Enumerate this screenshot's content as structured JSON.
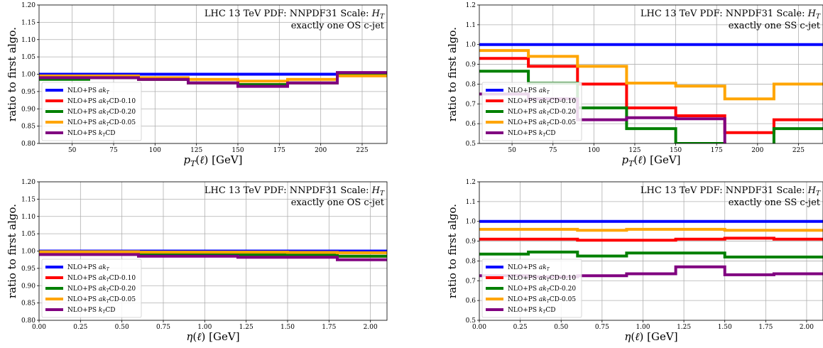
{
  "chart_data": [
    {
      "type": "line",
      "step": true,
      "annotation": [
        "LHC 13 TeV PDF: NNPDF31 Scale: H_T",
        "exactly one OS c-jet"
      ],
      "xlabel": "p_T(ℓ) [GeV]",
      "ylabel": "ratio to first algo.",
      "xlim": [
        30,
        240
      ],
      "ylim": [
        0.8,
        1.2
      ],
      "xticks": [
        50,
        75,
        100,
        125,
        150,
        175,
        200,
        225
      ],
      "yticks": [
        0.8,
        0.85,
        0.9,
        0.95,
        1.0,
        1.05,
        1.1,
        1.15,
        1.2
      ],
      "ytick_labels": [
        "0.80",
        "0.85",
        "0.90",
        "0.95",
        "1.00",
        "1.05",
        "1.10",
        "1.15",
        "1.20"
      ],
      "grid": true,
      "legend_position": "lower-left",
      "bin_edges": [
        30,
        60,
        90,
        120,
        150,
        180,
        210,
        240
      ],
      "series": [
        {
          "name": "NLO+PS ak_T",
          "color": "#0000ff",
          "values": [
            1.0,
            1.0,
            1.0,
            1.0,
            1.0,
            1.0,
            1.0
          ]
        },
        {
          "name": "NLO+PS ak_TCD-0.10",
          "color": "#ff0000",
          "values": [
            0.99,
            0.99,
            0.985,
            0.975,
            0.97,
            0.975,
            1.0
          ]
        },
        {
          "name": "NLO+PS ak_TCD-0.20",
          "color": "#008000",
          "values": [
            0.985,
            0.99,
            0.985,
            0.975,
            0.97,
            0.975,
            1.0
          ]
        },
        {
          "name": "NLO+PS ak_TCD-0.05",
          "color": "#ffa500",
          "values": [
            0.995,
            0.995,
            0.99,
            0.985,
            0.98,
            0.985,
            0.995
          ]
        },
        {
          "name": "NLO+PS k_TCD",
          "color": "#800080",
          "values": [
            0.99,
            0.99,
            0.985,
            0.975,
            0.965,
            0.975,
            1.005
          ]
        }
      ]
    },
    {
      "type": "line",
      "step": true,
      "annotation": [
        "LHC 13 TeV PDF: NNPDF31 Scale: H_T",
        "exactly one SS c-jet"
      ],
      "xlabel": "p_T(ℓ) [GeV]",
      "ylabel": "ratio to first algo.",
      "xlim": [
        30,
        240
      ],
      "ylim": [
        0.5,
        1.2
      ],
      "xticks": [
        50,
        75,
        100,
        125,
        150,
        175,
        200,
        225
      ],
      "yticks": [
        0.5,
        0.6,
        0.7,
        0.8,
        0.9,
        1.0,
        1.1,
        1.2
      ],
      "ytick_labels": [
        "0.5",
        "0.6",
        "0.7",
        "0.8",
        "0.9",
        "1.0",
        "1.1",
        "1.2"
      ],
      "grid": true,
      "legend_position": "lower-left",
      "bin_edges": [
        30,
        60,
        90,
        120,
        150,
        180,
        210,
        240
      ],
      "series": [
        {
          "name": "NLO+PS ak_T",
          "color": "#0000ff",
          "values": [
            1.0,
            1.0,
            1.0,
            1.0,
            1.0,
            1.0,
            1.0
          ]
        },
        {
          "name": "NLO+PS ak_TCD-0.10",
          "color": "#ff0000",
          "values": [
            0.93,
            0.89,
            0.8,
            0.68,
            0.64,
            0.555,
            0.62
          ]
        },
        {
          "name": "NLO+PS ak_TCD-0.20",
          "color": "#008000",
          "values": [
            0.865,
            0.805,
            0.68,
            0.575,
            0.5,
            0.45,
            0.575
          ]
        },
        {
          "name": "NLO+PS ak_TCD-0.05",
          "color": "#ffa500",
          "values": [
            0.97,
            0.94,
            0.89,
            0.805,
            0.79,
            0.725,
            0.8
          ]
        },
        {
          "name": "NLO+PS k_TCD",
          "color": "#800080",
          "values": [
            0.75,
            0.725,
            0.62,
            0.63,
            0.625,
            0.45,
            0.45
          ]
        }
      ]
    },
    {
      "type": "line",
      "step": true,
      "annotation": [
        "LHC 13 TeV PDF: NNPDF31 Scale: H_T",
        "exactly one OS c-jet"
      ],
      "xlabel": "η(ℓ) [GeV]",
      "ylabel": "ratio to first algo.",
      "xlim": [
        0,
        2.1
      ],
      "ylim": [
        0.8,
        1.2
      ],
      "xticks": [
        0,
        0.25,
        0.5,
        0.75,
        1.0,
        1.25,
        1.5,
        1.75,
        2.0
      ],
      "xtick_labels": [
        "0.00",
        "0.25",
        "0.50",
        "0.75",
        "1.00",
        "1.25",
        "1.50",
        "1.75",
        "2.00"
      ],
      "yticks": [
        0.8,
        0.85,
        0.9,
        0.95,
        1.0,
        1.05,
        1.1,
        1.15,
        1.2
      ],
      "ytick_labels": [
        "0.80",
        "0.85",
        "0.90",
        "0.95",
        "1.00",
        "1.05",
        "1.10",
        "1.15",
        "1.20"
      ],
      "grid": true,
      "legend_position": "lower-left",
      "bin_edges": [
        0,
        0.3,
        0.6,
        0.9,
        1.2,
        1.5,
        1.8,
        2.1
      ],
      "series": [
        {
          "name": "NLO+PS ak_T",
          "color": "#0000ff",
          "values": [
            1.0,
            1.0,
            1.0,
            1.0,
            1.0,
            1.0,
            1.0
          ]
        },
        {
          "name": "NLO+PS ak_TCD-0.10",
          "color": "#ff0000",
          "values": [
            0.995,
            0.995,
            0.99,
            0.99,
            0.99,
            0.99,
            0.985
          ]
        },
        {
          "name": "NLO+PS ak_TCD-0.20",
          "color": "#008000",
          "values": [
            0.995,
            0.995,
            0.99,
            0.99,
            0.99,
            0.99,
            0.985
          ]
        },
        {
          "name": "NLO+PS ak_TCD-0.05",
          "color": "#ffa500",
          "values": [
            0.998,
            0.998,
            0.997,
            0.997,
            0.997,
            0.996,
            0.995
          ]
        },
        {
          "name": "NLO+PS k_TCD",
          "color": "#800080",
          "values": [
            0.99,
            0.99,
            0.985,
            0.985,
            0.982,
            0.982,
            0.975
          ]
        }
      ]
    },
    {
      "type": "line",
      "step": true,
      "annotation": [
        "LHC 13 TeV PDF: NNPDF31 Scale: H_T",
        "exactly one SS c-jet"
      ],
      "xlabel": "η(ℓ) [GeV]",
      "ylabel": "ratio to first algo.",
      "xlim": [
        0,
        2.1
      ],
      "ylim": [
        0.5,
        1.2
      ],
      "xticks": [
        0,
        0.25,
        0.5,
        0.75,
        1.0,
        1.25,
        1.5,
        1.75,
        2.0
      ],
      "xtick_labels": [
        "0.00",
        "0.25",
        "0.50",
        "0.75",
        "1.00",
        "1.25",
        "1.50",
        "1.75",
        "2.00"
      ],
      "yticks": [
        0.5,
        0.6,
        0.7,
        0.8,
        0.9,
        1.0,
        1.1,
        1.2
      ],
      "ytick_labels": [
        "0.5",
        "0.6",
        "0.7",
        "0.8",
        "0.9",
        "1.0",
        "1.1",
        "1.2"
      ],
      "grid": true,
      "legend_position": "lower-left",
      "bin_edges": [
        0,
        0.3,
        0.6,
        0.9,
        1.2,
        1.5,
        1.8,
        2.1
      ],
      "series": [
        {
          "name": "NLO+PS ak_T",
          "color": "#0000ff",
          "values": [
            1.0,
            1.0,
            1.0,
            1.0,
            1.0,
            1.0,
            1.0
          ]
        },
        {
          "name": "NLO+PS ak_TCD-0.10",
          "color": "#ff0000",
          "values": [
            0.91,
            0.91,
            0.905,
            0.905,
            0.91,
            0.915,
            0.91
          ]
        },
        {
          "name": "NLO+PS ak_TCD-0.20",
          "color": "#008000",
          "values": [
            0.835,
            0.845,
            0.825,
            0.84,
            0.84,
            0.82,
            0.82
          ]
        },
        {
          "name": "NLO+PS ak_TCD-0.05",
          "color": "#ffa500",
          "values": [
            0.96,
            0.96,
            0.955,
            0.96,
            0.96,
            0.955,
            0.955
          ]
        },
        {
          "name": "NLO+PS k_TCD",
          "color": "#800080",
          "values": [
            0.725,
            0.72,
            0.725,
            0.735,
            0.77,
            0.73,
            0.735
          ]
        }
      ]
    }
  ]
}
